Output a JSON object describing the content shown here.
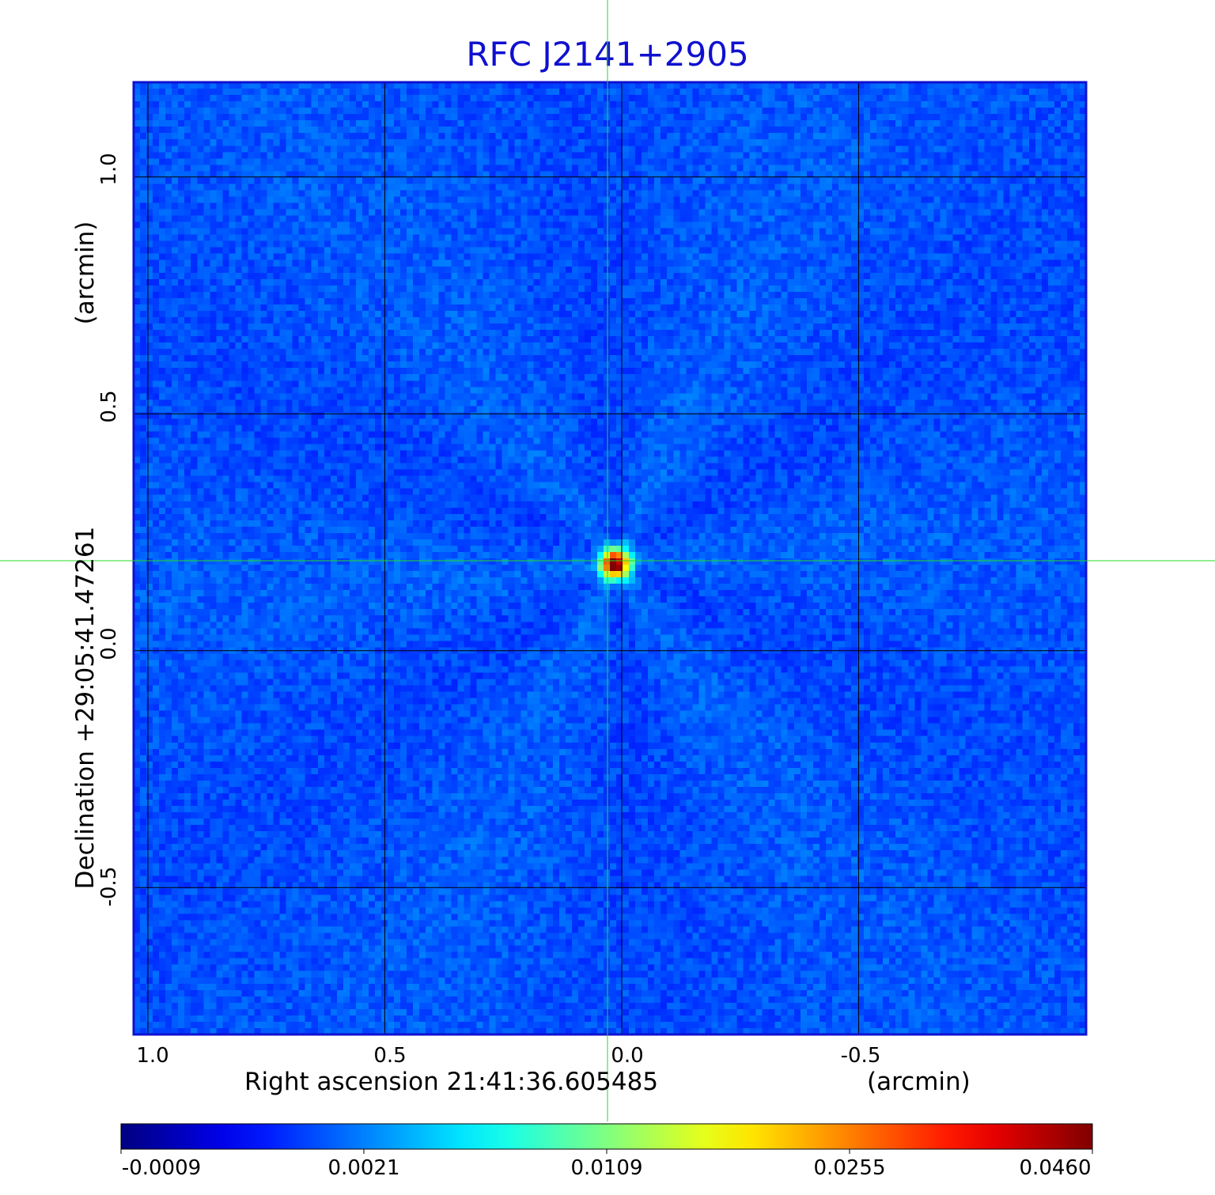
{
  "chart_data": {
    "type": "heatmap",
    "title": "RFC J2141+2905",
    "xlabel": "Right ascension  21:41:36.605485",
    "xunit": "(arcmin)",
    "ylabel": "Declination  +29:05:41.47261",
    "yunit": "(arcmin)",
    "x_ticks": [
      {
        "value": 1.0,
        "label": "1.0"
      },
      {
        "value": 0.5,
        "label": "0.5"
      },
      {
        "value": 0.0,
        "label": "0.0"
      },
      {
        "value": -0.5,
        "label": "-0.5"
      }
    ],
    "y_ticks": [
      {
        "value": 1.0,
        "label": "1.0"
      },
      {
        "value": 0.5,
        "label": "0.5"
      },
      {
        "value": 0.0,
        "label": "0.0"
      },
      {
        "value": -0.5,
        "label": "-0.5"
      }
    ],
    "xlim": [
      1.03,
      -0.98
    ],
    "ylim": [
      -0.81,
      1.2
    ],
    "x_inverted": true,
    "grid": true,
    "crosshair": {
      "x": 0.03,
      "y": 0.19
    },
    "source_peak": {
      "x": 0.02,
      "y": 0.19,
      "value": 0.046
    },
    "colorbar": {
      "ticks": [
        {
          "value": -0.0009,
          "label": "-0.0009"
        },
        {
          "value": 0.0021,
          "label": "0.0021"
        },
        {
          "value": 0.0109,
          "label": "0.0109"
        },
        {
          "value": 0.0255,
          "label": "0.0255"
        },
        {
          "value": 0.046,
          "label": "0.0460"
        }
      ],
      "colormap": "jet"
    },
    "colors": {
      "title": "#1010d0",
      "frame": "#1010d0",
      "grid": "#000000",
      "crosshair": "#22dd22",
      "background_noise": "#1e4cf0"
    }
  }
}
